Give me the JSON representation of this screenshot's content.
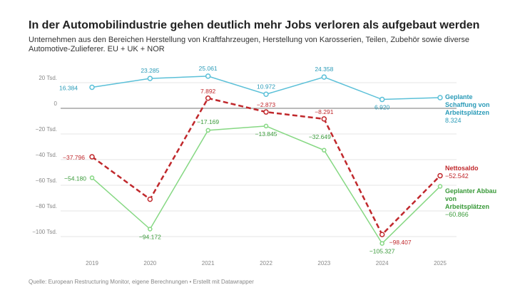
{
  "chart_data": {
    "type": "line",
    "title": "In der Automobilindustrie gehen deutlich mehr Jobs verloren als aufgebaut werden",
    "subtitle": "Unternehmen aus den Bereichen Herstellung von Kraftfahrzeugen, Herstellung von Karosserien, Teilen, Zubehör sowie diverse Automotive-Zulieferer. EU + UK + NOR",
    "source": "Quelle: European Restructuring Monitor, eigene Berechnungen • Erstellt mit Datawrapper",
    "categories": [
      "2019",
      "2020",
      "2021",
      "2022",
      "2023",
      "2024",
      "2025"
    ],
    "ylim": [
      -110000,
      30000
    ],
    "yticks": [
      {
        "value": 20000,
        "label": "20 Tsd."
      },
      0,
      {
        "value": -20000,
        "label": "−20 Tsd."
      },
      {
        "value": -40000,
        "label": "−40 Tsd."
      },
      {
        "value": -60000,
        "label": "−60 Tsd."
      },
      {
        "value": -80000,
        "label": "−80 Tsd."
      },
      {
        "value": -100000,
        "label": "−100 Tsd."
      }
    ],
    "grid": true,
    "series": [
      {
        "name": "Geplante Schaffung von Arbeitsplätzen",
        "color": "#5bc0d8",
        "label_color": "#2a9bb8",
        "dashed": false,
        "values": [
          16384,
          23285,
          25061,
          10972,
          24358,
          6920,
          8324
        ],
        "value_labels": [
          "16.384",
          "23.285",
          "25.061",
          "10.972",
          "24.358",
          "6.920",
          "8.324"
        ]
      },
      {
        "name": "Nettosaldo",
        "color": "#c0282c",
        "label_color": "#c0282c",
        "dashed": true,
        "values": [
          -37796,
          -70887,
          7892,
          -2873,
          -8291,
          -98407,
          -52542
        ],
        "value_labels": [
          "−37.796",
          null,
          "7.892",
          "−2.873",
          "−8.291",
          "−98.407",
          "−52.542"
        ]
      },
      {
        "name": "Geplanter Abbau von Arbeitsplätzen",
        "color": "#86d883",
        "label_color": "#3a9a3a",
        "dashed": false,
        "values": [
          -54180,
          -94172,
          -17169,
          -13845,
          -32649,
          -105327,
          -60866
        ],
        "value_labels": [
          "−54.180",
          "−94.172",
          "−17.169",
          "−13.845",
          "−32.649",
          "−105.327",
          "−60.866"
        ]
      }
    ]
  }
}
